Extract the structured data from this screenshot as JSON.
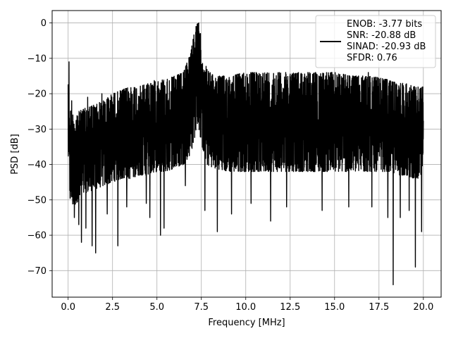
{
  "chart_data": {
    "type": "line",
    "xlabel": "Frequency [MHz]",
    "ylabel": "PSD [dB]",
    "xlim": [
      -0.9,
      21.0
    ],
    "ylim": [
      -77.5,
      3.5
    ],
    "xticks": [
      0.0,
      2.5,
      5.0,
      7.5,
      10.0,
      12.5,
      15.0,
      17.5,
      20.0
    ],
    "xtick_labels": [
      "0.0",
      "2.5",
      "5.0",
      "7.5",
      "10.0",
      "12.5",
      "15.0",
      "17.5",
      "20.0"
    ],
    "yticks": [
      0,
      -10,
      -20,
      -30,
      -40,
      -50,
      -60,
      -70
    ],
    "ytick_labels": [
      "0",
      "−10",
      "−20",
      "−30",
      "−40",
      "−50",
      "−60",
      "−70"
    ],
    "grid": true,
    "legend": {
      "placement": "upper-right",
      "lines": [
        "ENOB: -3.77 bits",
        "SNR: -20.88 dB",
        "SINAD: -20.93 dB",
        "SFDR: 0.76"
      ]
    },
    "series": [
      {
        "color": "#000000",
        "envelope_x": [
          0.0,
          0.1,
          0.3,
          0.6,
          1.0,
          1.5,
          2.0,
          2.5,
          3.0,
          3.5,
          4.0,
          4.5,
          5.0,
          5.5,
          6.0,
          6.5,
          6.9,
          7.1,
          7.3,
          7.5,
          7.8,
          8.2,
          9.0,
          10.0,
          11.0,
          12.0,
          13.0,
          14.0,
          15.0,
          16.0,
          17.0,
          18.0,
          18.5,
          19.0,
          19.5,
          20.0
        ],
        "envelope_top": [
          -11,
          -24,
          -26,
          -25,
          -24,
          -23,
          -22,
          -20,
          -19,
          -18,
          -18,
          -17,
          -16,
          -16,
          -15,
          -14,
          -8,
          -2,
          0,
          -6,
          -13,
          -15,
          -15,
          -14,
          -14,
          -14,
          -14,
          -14,
          -14,
          -15,
          -15,
          -16,
          -17,
          -17,
          -18,
          -18
        ],
        "envelope_bottom": [
          -38,
          -50,
          -52,
          -50,
          -48,
          -47,
          -46,
          -45,
          -44,
          -44,
          -43,
          -43,
          -42,
          -42,
          -41,
          -40,
          -37,
          -33,
          -28,
          -34,
          -40,
          -41,
          -42,
          -42,
          -42,
          -42,
          -42,
          -42,
          -42,
          -42,
          -42,
          -42,
          -43,
          -43,
          -44,
          -44
        ],
        "dips": [
          [
            0.35,
            -55
          ],
          [
            0.6,
            -57
          ],
          [
            0.75,
            -62
          ],
          [
            1.0,
            -58
          ],
          [
            1.35,
            -63
          ],
          [
            1.55,
            -65
          ],
          [
            2.2,
            -54
          ],
          [
            2.8,
            -63
          ],
          [
            3.3,
            -52
          ],
          [
            4.4,
            -51
          ],
          [
            4.6,
            -55
          ],
          [
            5.2,
            -60
          ],
          [
            5.4,
            -58
          ],
          [
            6.6,
            -46
          ],
          [
            7.7,
            -53
          ],
          [
            8.4,
            -59
          ],
          [
            9.2,
            -54
          ],
          [
            10.3,
            -51
          ],
          [
            11.4,
            -56
          ],
          [
            12.3,
            -52
          ],
          [
            14.3,
            -53
          ],
          [
            15.8,
            -52
          ],
          [
            17.1,
            -52
          ],
          [
            18.0,
            -55
          ],
          [
            18.3,
            -74
          ],
          [
            18.7,
            -55
          ],
          [
            19.2,
            -53
          ],
          [
            19.55,
            -69
          ],
          [
            19.9,
            -59
          ]
        ],
        "spikes": [
          [
            0.05,
            -11
          ],
          [
            0.2,
            -22
          ],
          [
            1.1,
            -21
          ],
          [
            1.9,
            -20
          ],
          [
            7.2,
            -1
          ],
          [
            7.35,
            0
          ],
          [
            7.45,
            -3
          ],
          [
            13.5,
            -14
          ],
          [
            16.9,
            -14
          ]
        ]
      }
    ]
  }
}
